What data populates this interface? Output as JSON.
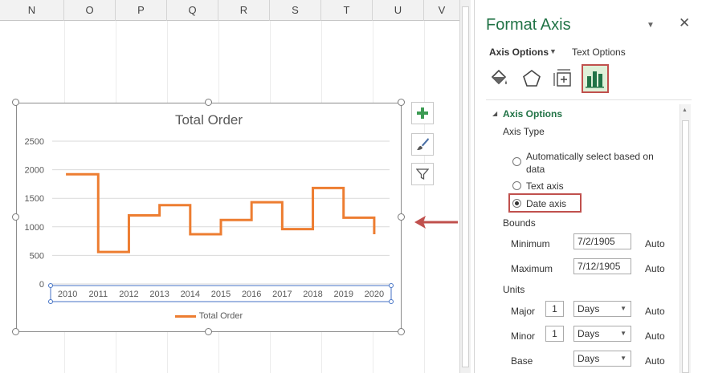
{
  "sheet": {
    "columns": [
      "N",
      "O",
      "P",
      "Q",
      "R",
      "S",
      "T",
      "U",
      "V"
    ]
  },
  "chart": {
    "side_buttons": [
      "chart-elements-plus-icon",
      "chart-styles-brush-icon",
      "chart-filters-funnel-icon"
    ]
  },
  "chart_data": {
    "type": "line",
    "title": "Total Order",
    "line_style": "step",
    "categories": [
      "2010",
      "2011",
      "2012",
      "2013",
      "2014",
      "2015",
      "2016",
      "2017",
      "2018",
      "2019",
      "2020"
    ],
    "series": [
      {
        "name": "Total Order",
        "color": "#ed7d31",
        "values": [
          1920,
          560,
          1200,
          1380,
          870,
          1120,
          1430,
          960,
          1680,
          1160,
          870
        ]
      }
    ],
    "y_ticks": [
      "0",
      "500",
      "1000",
      "1500",
      "2000",
      "2500"
    ],
    "ylim": [
      0,
      2500
    ],
    "grid": true,
    "legend_position": "bottom",
    "x_axis_selected": true
  },
  "pane": {
    "title": "Format Axis",
    "tabs": {
      "axis_options": "Axis Options",
      "text_options": "Text Options"
    },
    "category_icons": [
      "fill-line-bucket-icon",
      "effects-pentagon-icon",
      "size-properties-icon",
      "axis-options-bars-icon"
    ],
    "section_title": "Axis Options",
    "axis_type_label": "Axis Type",
    "radios": {
      "auto_line1": "Automatically select based on",
      "auto_line2": "data",
      "text_axis": "Text axis",
      "date_axis": "Date axis",
      "selected": "date_axis"
    },
    "bounds": {
      "label": "Bounds",
      "minimum_label": "Minimum",
      "minimum_value": "7/2/1905",
      "maximum_label": "Maximum",
      "maximum_value": "7/12/1905",
      "auto_label": "Auto"
    },
    "units": {
      "label": "Units",
      "major_label": "Major",
      "major_value": "1",
      "major_unit": "Days",
      "minor_label": "Minor",
      "minor_value": "1",
      "minor_unit": "Days",
      "base_label": "Base",
      "base_unit": "Days",
      "auto_label": "Auto"
    },
    "accent_color": "#217346",
    "highlight_color": "#c0504d"
  }
}
